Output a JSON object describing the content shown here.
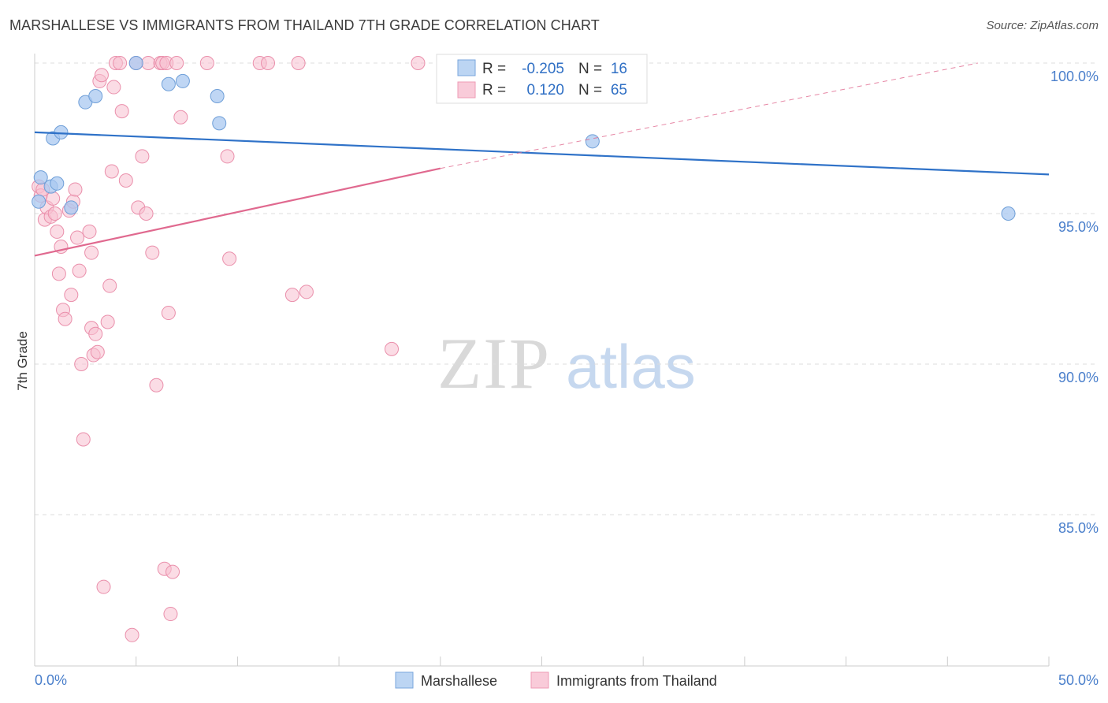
{
  "title": "MARSHALLESE VS IMMIGRANTS FROM THAILAND 7TH GRADE CORRELATION CHART",
  "source": "Source: ZipAtlas.com",
  "watermark": {
    "zip": "ZIP",
    "atlas": "atlas"
  },
  "legend": {
    "rows": [
      {
        "r_label": "R =",
        "r_value": "-0.205",
        "n_label": "N =",
        "n_value": "16"
      },
      {
        "r_label": "R =",
        "r_value": "0.120",
        "n_label": "N =",
        "n_value": "65"
      }
    ]
  },
  "bottom_legend": {
    "series1": "Marshallese",
    "series2": "Immigrants from Thailand"
  },
  "colors": {
    "marshallese_fill": "#a9c8f0",
    "marshallese_stroke": "#6f9fd8",
    "marshallese_line": "#2f72c8",
    "thailand_fill": "#f7bfd0",
    "thailand_stroke": "#ea8fab",
    "thailand_line": "#e0698f",
    "tick_label": "#4a7fcb",
    "grid": "#dddddd"
  },
  "chart_data": {
    "type": "scatter",
    "title": "MARSHALLESE VS IMMIGRANTS FROM THAILAND 7TH GRADE CORRELATION CHART",
    "xlabel": "",
    "ylabel": "7th Grade",
    "xlim": [
      0,
      50
    ],
    "ylim": [
      80.5,
      100.5
    ],
    "x_tick_labels": [
      "0.0%",
      "50.0%"
    ],
    "y_ticks": [
      85,
      90,
      95,
      100
    ],
    "y_tick_labels": [
      "85.0%",
      "90.0%",
      "95.0%",
      "100.0%"
    ],
    "series": [
      {
        "name": "Marshallese",
        "r": -0.205,
        "n": 16,
        "trend": {
          "x0": 0,
          "y0": 97.7,
          "x1": 50,
          "y1": 96.3
        },
        "points": [
          [
            0.3,
            96.2
          ],
          [
            0.2,
            95.4
          ],
          [
            0.8,
            95.9
          ],
          [
            1.1,
            96.0
          ],
          [
            0.9,
            97.5
          ],
          [
            1.3,
            97.7
          ],
          [
            1.8,
            95.2
          ],
          [
            2.5,
            98.7
          ],
          [
            3.0,
            98.9
          ],
          [
            5.0,
            100.0
          ],
          [
            6.6,
            99.3
          ],
          [
            7.3,
            99.4
          ],
          [
            9.0,
            98.9
          ],
          [
            9.1,
            98.0
          ],
          [
            27.5,
            97.4
          ],
          [
            48.0,
            95.0
          ]
        ]
      },
      {
        "name": "Immigrants from Thailand",
        "r": 0.12,
        "n": 65,
        "trend": {
          "x0": 0,
          "y0": 93.6,
          "x1": 20,
          "y1": 96.5
        },
        "trend_dashed": {
          "x0": 20,
          "y0": 96.5,
          "x1": 46.5,
          "y1": 100.0
        },
        "points": [
          [
            0.2,
            95.9
          ],
          [
            0.3,
            95.6
          ],
          [
            0.4,
            95.8
          ],
          [
            0.5,
            94.8
          ],
          [
            0.6,
            95.2
          ],
          [
            0.8,
            94.9
          ],
          [
            0.9,
            95.5
          ],
          [
            1.0,
            95.0
          ],
          [
            1.1,
            94.4
          ],
          [
            1.2,
            93.0
          ],
          [
            1.3,
            93.9
          ],
          [
            1.4,
            91.8
          ],
          [
            1.5,
            91.5
          ],
          [
            1.7,
            95.1
          ],
          [
            1.8,
            92.3
          ],
          [
            1.9,
            95.4
          ],
          [
            2.0,
            95.8
          ],
          [
            2.1,
            94.2
          ],
          [
            2.2,
            93.1
          ],
          [
            2.3,
            90.0
          ],
          [
            2.4,
            87.5
          ],
          [
            2.7,
            94.4
          ],
          [
            2.8,
            93.7
          ],
          [
            2.8,
            91.2
          ],
          [
            2.9,
            90.3
          ],
          [
            3.1,
            90.4
          ],
          [
            3.0,
            91.0
          ],
          [
            3.2,
            99.4
          ],
          [
            3.3,
            99.6
          ],
          [
            3.4,
            82.6
          ],
          [
            3.6,
            91.4
          ],
          [
            3.7,
            92.6
          ],
          [
            3.8,
            96.4
          ],
          [
            3.9,
            99.2
          ],
          [
            4.0,
            100.0
          ],
          [
            4.2,
            100.0
          ],
          [
            4.3,
            98.4
          ],
          [
            4.5,
            96.1
          ],
          [
            4.8,
            81.0
          ],
          [
            5.0,
            100.0
          ],
          [
            5.1,
            95.2
          ],
          [
            5.3,
            96.9
          ],
          [
            5.5,
            95.0
          ],
          [
            5.6,
            100.0
          ],
          [
            5.8,
            93.7
          ],
          [
            6.0,
            89.3
          ],
          [
            6.2,
            100.0
          ],
          [
            6.3,
            100.0
          ],
          [
            6.4,
            83.2
          ],
          [
            6.5,
            100.0
          ],
          [
            6.6,
            91.7
          ],
          [
            6.7,
            81.7
          ],
          [
            6.8,
            83.1
          ],
          [
            7.0,
            100.0
          ],
          [
            7.2,
            98.2
          ],
          [
            8.5,
            100.0
          ],
          [
            9.5,
            96.9
          ],
          [
            9.6,
            93.5
          ],
          [
            11.1,
            100.0
          ],
          [
            11.5,
            100.0
          ],
          [
            12.7,
            92.3
          ],
          [
            13.0,
            100.0
          ],
          [
            13.4,
            92.4
          ],
          [
            17.6,
            90.5
          ],
          [
            18.9,
            100.0
          ]
        ]
      }
    ]
  }
}
